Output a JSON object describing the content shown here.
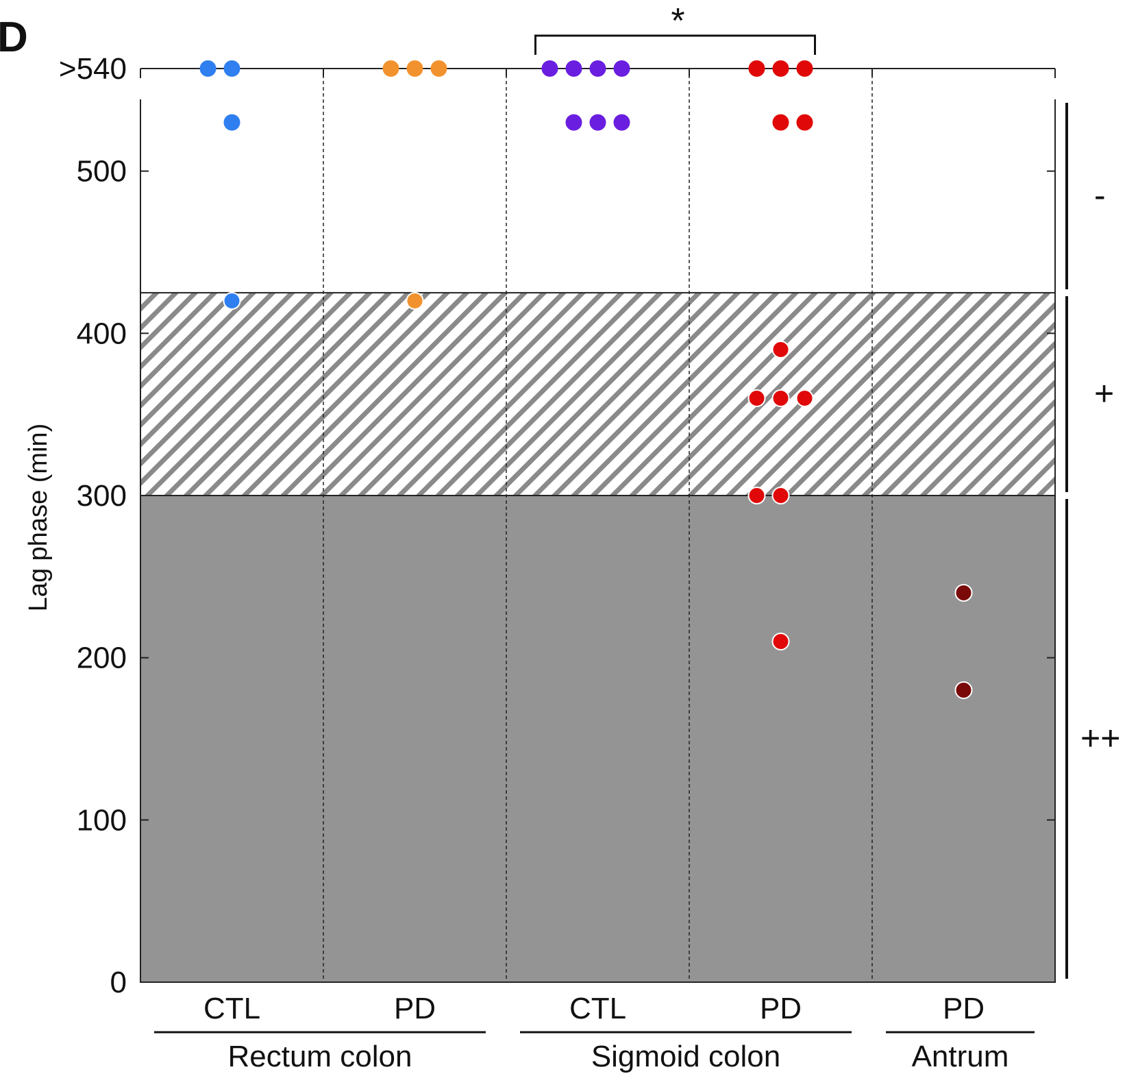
{
  "panel_label": "D",
  "colors": {
    "CTL_rectum": "#2f7ff0",
    "PD_rectum": "#f2922e",
    "CTL_sigmoid": "#6a1ee0",
    "PD_sigmoid": "#e00808",
    "PD_antrum": "#7a0a0a",
    "band_strong": "#949494",
    "band_hatch": "#8a8a8a"
  },
  "chart_data": {
    "type": "scatter",
    "title": "",
    "xlabel": "",
    "ylabel": "Lag phase (min)",
    "ylim": [
      0,
      540
    ],
    "y_ticks": [
      0,
      100,
      200,
      300,
      400,
      500
    ],
    "y_tick_labels": [
      "0",
      "100",
      "200",
      "300",
      "400",
      "500"
    ],
    "y_top_label": ">540",
    "categories": [
      "CTL",
      "PD",
      "CTL",
      "PD",
      "PD"
    ],
    "groups": [
      {
        "label": "Rectum colon",
        "categories": [
          0,
          1
        ]
      },
      {
        "label": "Sigmoid colon",
        "categories": [
          2,
          3
        ]
      },
      {
        "label": "Antrum",
        "categories": [
          4
        ]
      }
    ],
    "bands": [
      {
        "label": "-",
        "from": 425,
        "to": 540,
        "fill": "none"
      },
      {
        "label": "+",
        "from": 300,
        "to": 425,
        "fill": "hatched"
      },
      {
        "label": "++",
        "from": 0,
        "to": 300,
        "fill": "solid"
      }
    ],
    "significance": [
      {
        "between": [
          2,
          3
        ],
        "label": "*"
      }
    ],
    "series": [
      {
        "category": 0,
        "color_key": "CTL_rectum",
        "points": [
          [
            -1,
            ">540"
          ],
          [
            0,
            ">540"
          ],
          [
            0,
            530
          ],
          [
            0,
            420
          ]
        ]
      },
      {
        "category": 1,
        "color_key": "PD_rectum",
        "points": [
          [
            -1,
            ">540"
          ],
          [
            0,
            ">540"
          ],
          [
            1,
            ">540"
          ],
          [
            0,
            420
          ]
        ]
      },
      {
        "category": 2,
        "color_key": "CTL_sigmoid",
        "points": [
          [
            -2,
            ">540"
          ],
          [
            -1,
            ">540"
          ],
          [
            0,
            ">540"
          ],
          [
            1,
            ">540"
          ],
          [
            -1,
            530
          ],
          [
            0,
            530
          ],
          [
            1,
            530
          ]
        ]
      },
      {
        "category": 3,
        "color_key": "PD_sigmoid",
        "points": [
          [
            -1,
            ">540"
          ],
          [
            0,
            ">540"
          ],
          [
            1,
            ">540"
          ],
          [
            0,
            530
          ],
          [
            1,
            530
          ],
          [
            0,
            390
          ],
          [
            -1,
            360
          ],
          [
            0,
            360
          ],
          [
            1,
            360
          ],
          [
            -1,
            300
          ],
          [
            0,
            300
          ],
          [
            0,
            210
          ]
        ]
      },
      {
        "category": 4,
        "color_key": "PD_antrum",
        "points": [
          [
            0,
            240
          ],
          [
            0,
            180
          ]
        ]
      }
    ]
  }
}
